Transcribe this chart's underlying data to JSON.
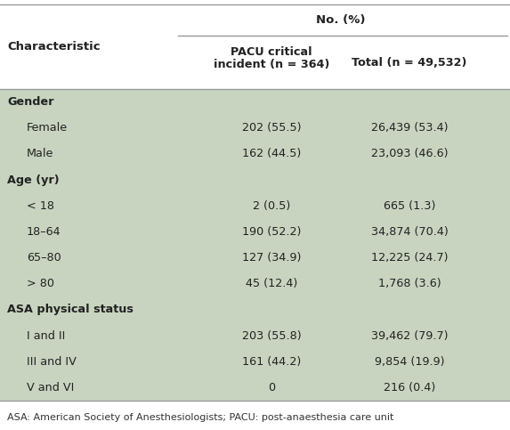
{
  "title_col1": "Characteristic",
  "title_no_pct": "No. (%)",
  "col2_header_line1": "PACU critical",
  "col2_header_line2": "incident (n = 364)",
  "col3_header": "Total (n = 49,532)",
  "bg_color": "#c8d4c0",
  "header_bg": "#ffffff",
  "footnote": "ASA: American Society of Anesthesiologists; PACU: post-anaesthesia care unit",
  "rows": [
    {
      "label": "Gender",
      "bold": true,
      "indent": false,
      "pacu": "",
      "total": ""
    },
    {
      "label": "Female",
      "bold": false,
      "indent": true,
      "pacu": "202 (55.5)",
      "total": "26,439 (53.4)"
    },
    {
      "label": "Male",
      "bold": false,
      "indent": true,
      "pacu": "162 (44.5)",
      "total": "23,093 (46.6)"
    },
    {
      "label": "Age (yr)",
      "bold": true,
      "indent": false,
      "pacu": "",
      "total": ""
    },
    {
      "label": "< 18",
      "bold": false,
      "indent": true,
      "pacu": "2 (0.5)",
      "total": "665 (1.3)"
    },
    {
      "label": "18–64",
      "bold": false,
      "indent": true,
      "pacu": "190 (52.2)",
      "total": "34,874 (70.4)"
    },
    {
      "label": "65–80",
      "bold": false,
      "indent": true,
      "pacu": "127 (34.9)",
      "total": "12,225 (24.7)"
    },
    {
      "label": "> 80",
      "bold": false,
      "indent": true,
      "pacu": "45 (12.4)",
      "total": "1,768 (3.6)"
    },
    {
      "label": "ASA physical status",
      "bold": true,
      "indent": false,
      "pacu": "",
      "total": ""
    },
    {
      "label": "I and II",
      "bold": false,
      "indent": true,
      "pacu": "203 (55.8)",
      "total": "39,462 (79.7)"
    },
    {
      "label": "III and IV",
      "bold": false,
      "indent": true,
      "pacu": "161 (44.2)",
      "total": "9,854 (19.9)"
    },
    {
      "label": "V and VI",
      "bold": false,
      "indent": true,
      "pacu": "0",
      "total": "216 (0.4)"
    }
  ],
  "fig_width": 5.73,
  "fig_height": 4.83,
  "dpi": 100
}
